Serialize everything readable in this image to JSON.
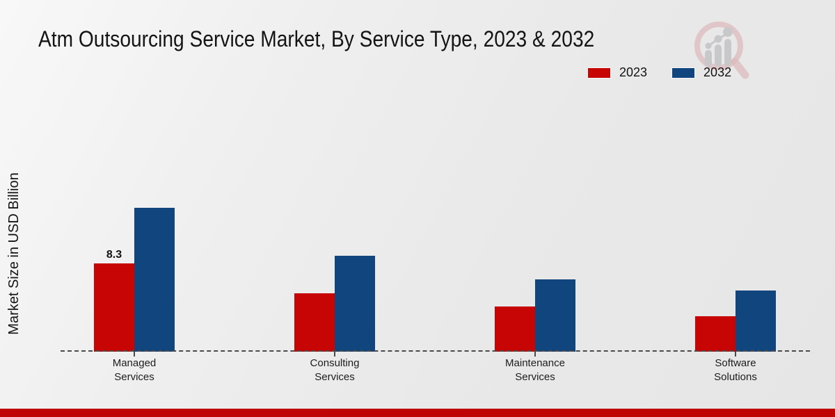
{
  "title": "Atm Outsourcing Service Market, By Service Type, 2023 & 2032",
  "ylabel": "Market Size in USD Billion",
  "colors": {
    "series_2023": "#c70505",
    "series_2032": "#11457e",
    "accent_strip": "#bf0404",
    "axis": "#4a4a4a",
    "logo_ring": "#dcb3b6",
    "logo_gray": "#c3c3c7"
  },
  "legend": [
    {
      "label": "2023",
      "color": "#c70505"
    },
    {
      "label": "2032",
      "color": "#11457e"
    }
  ],
  "icons": {
    "watermark": "magnifier-bar-chart-logo"
  },
  "chart_data": {
    "type": "bar",
    "categories": [
      "Managed Services",
      "Consulting Services",
      "Maintenance Services",
      "Software Solutions"
    ],
    "series": [
      {
        "name": "2023",
        "color": "#c70505",
        "values": [
          8.3,
          5.5,
          4.2,
          3.3
        ],
        "bar_labels": [
          "8.3",
          "",
          "",
          ""
        ]
      },
      {
        "name": "2032",
        "color": "#11457e",
        "values": [
          13.5,
          9.0,
          6.8,
          5.7
        ],
        "bar_labels": [
          "",
          "",
          "",
          ""
        ]
      }
    ],
    "title": "Atm Outsourcing Service Market, By Service Type, 2023 & 2032",
    "xlabel": "",
    "ylabel": "Market Size in USD Billion",
    "ylim": [
      0,
      14
    ],
    "grid": false,
    "legend_position": "top-right",
    "x_axis_style": "dashed",
    "y_axis_ticks_visible": false
  }
}
